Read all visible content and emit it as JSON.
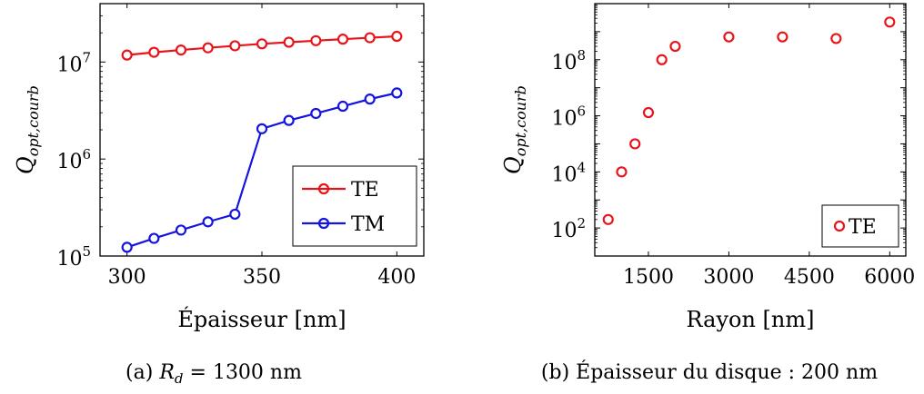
{
  "chart_data": [
    {
      "type": "line",
      "xlabel": "Épaisseur [nm]",
      "ylabel_main": "Q",
      "ylabel_sub": "opt,courb",
      "caption_prefix": "(a)",
      "caption_var": "R",
      "caption_var_sub": "d",
      "caption_value": "= 1300 nm",
      "yscale": "log",
      "xlim": [
        290,
        410
      ],
      "ylim": [
        100000,
        40000000
      ],
      "xticks": [
        300,
        350,
        400
      ],
      "xtick_labels": [
        "300",
        "350",
        "400"
      ],
      "yticks": [
        100000,
        1000000,
        10000000
      ],
      "ytick_base": [
        "10",
        "10",
        "10"
      ],
      "ytick_exp": [
        "5",
        "6",
        "7"
      ],
      "legend_position": "bottom-right",
      "series": [
        {
          "name": "TE",
          "color": "#e8141b",
          "x": [
            300,
            310,
            320,
            330,
            340,
            350,
            360,
            370,
            380,
            390,
            400
          ],
          "values": [
            11800000,
            12600000,
            13300000,
            14000000,
            14700000,
            15400000,
            16000000,
            16600000,
            17200000,
            17800000,
            18400000
          ]
        },
        {
          "name": "TM",
          "color": "#1414e0",
          "x": [
            300,
            310,
            320,
            330,
            340,
            350,
            360,
            370,
            380,
            390,
            400
          ],
          "values": [
            123000,
            152000,
            185000,
            225000,
            270000,
            2050000,
            2500000,
            2950000,
            3500000,
            4150000,
            4800000
          ]
        }
      ]
    },
    {
      "type": "scatter",
      "xlabel": "Rayon [nm]",
      "ylabel_main": "Q",
      "ylabel_sub": "opt,courb",
      "caption": "(b) Épaisseur du disque : 200 nm",
      "yscale": "log",
      "xlim": [
        500,
        6300
      ],
      "ylim": [
        10,
        10000000000
      ],
      "xticks": [
        1500,
        3000,
        4500,
        6000
      ],
      "xtick_labels": [
        "1500",
        "3000",
        "4500",
        "6000"
      ],
      "yticks": [
        100,
        10000,
        1000000,
        100000000
      ],
      "ytick_base": [
        "10",
        "10",
        "10",
        "10"
      ],
      "ytick_exp": [
        "2",
        "4",
        "6",
        "8"
      ],
      "legend_position": "bottom-right",
      "series": [
        {
          "name": "TE",
          "color": "#e8141b",
          "x": [
            750,
            1000,
            1250,
            1500,
            1750,
            2000,
            3000,
            4000,
            5000,
            6000
          ],
          "values": [
            200,
            10000,
            100000,
            1300000,
            100000000,
            300000000,
            650000000,
            650000000,
            570000000,
            2200000000
          ]
        }
      ]
    }
  ]
}
